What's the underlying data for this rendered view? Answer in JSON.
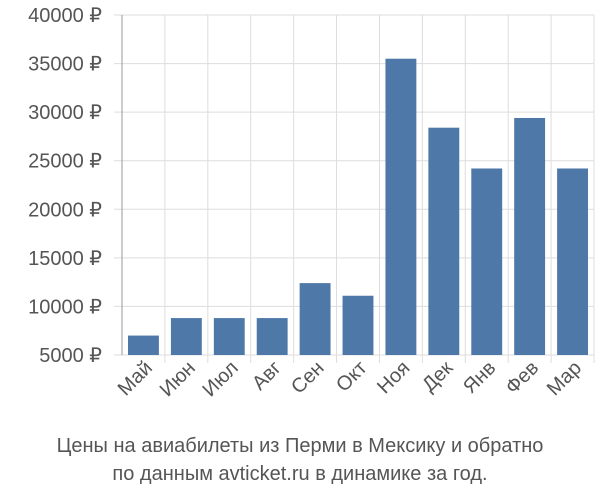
{
  "chart_data": {
    "type": "bar",
    "categories": [
      "Май",
      "Июн",
      "Июл",
      "Авг",
      "Сен",
      "Окт",
      "Ноя",
      "Дек",
      "Янв",
      "Фев",
      "Мар"
    ],
    "values": [
      7000,
      8800,
      8800,
      8800,
      12400,
      11100,
      35500,
      28400,
      24200,
      29400,
      24200
    ],
    "ylim": [
      5000,
      40000
    ],
    "yticks": [
      5000,
      10000,
      15000,
      20000,
      25000,
      30000,
      35000,
      40000
    ],
    "ytick_labels": [
      "5000 ₽",
      "10000 ₽",
      "15000 ₽",
      "20000 ₽",
      "25000 ₽",
      "30000 ₽",
      "35000 ₽",
      "40000 ₽"
    ],
    "grid": true,
    "bar_color": "#4e78a8",
    "grid_color": "#dddddd",
    "axis_color": "#999999"
  },
  "caption": {
    "line1": "Цены на авиабилеты из Перми в Мексику и обратно",
    "line2": "по данным avticket.ru в динамике за год."
  }
}
